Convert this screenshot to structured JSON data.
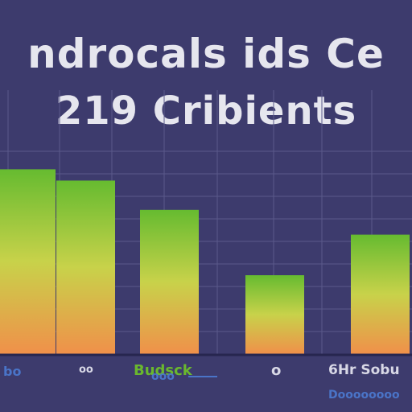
{
  "title": {
    "line1": "ndrocals ids Ce",
    "line2": "219 Cribients"
  },
  "colors": {
    "background": "#3d3b6d",
    "grid": "#5a5a8a",
    "baseline": "#27264f",
    "bar_top": "#66bb30",
    "bar_mid": "#c8d24a",
    "bar_bottom": "#f0904a",
    "label_green": "#6ab82e",
    "label_blue": "#4a74c8",
    "label_light": "#d8d8e6"
  },
  "chart_data": {
    "type": "bar",
    "categories": [
      "",
      "",
      "",
      "",
      ""
    ],
    "values": [
      82,
      77,
      64,
      35,
      53
    ],
    "ylim": [
      0,
      100
    ],
    "grid": true,
    "legend": "none"
  },
  "labels": {
    "bottom": [
      {
        "text": "bo",
        "color": "#4a74c8"
      },
      {
        "text": "oo",
        "color": "#d8d8e6"
      },
      {
        "text": "Budsck",
        "color": "#6ab82e"
      },
      {
        "text": "o",
        "color": "#d8d8e6"
      },
      {
        "text": "6Hr Sobu",
        "color": "#d8d8e6"
      }
    ],
    "sub": [
      {
        "text": "ooo",
        "color": "#4a74c8"
      },
      {
        "text": "Doooooooo",
        "color": "#4a74c8"
      }
    ]
  }
}
